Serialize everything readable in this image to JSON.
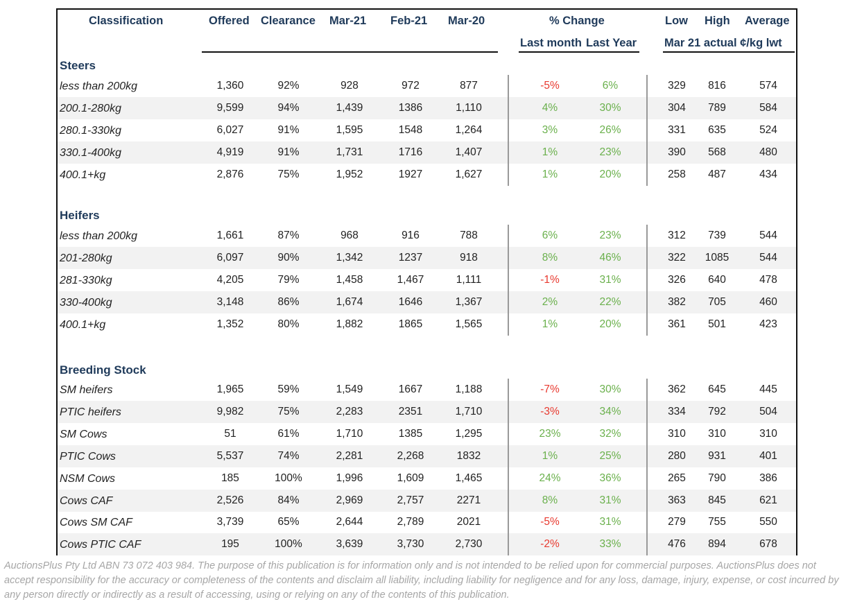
{
  "headers": {
    "classification": "Classification",
    "offered": "Offered",
    "clearance": "Clearance",
    "mar21": "Mar-21",
    "feb21": "Feb-21",
    "mar20": "Mar-20",
    "pct_change": "% Change",
    "last_month": "Last month",
    "last_year": "Last Year",
    "low": "Low",
    "high": "High",
    "average": "Average",
    "price_sub": "Mar 21 actual ¢/kg lwt"
  },
  "sections": [
    {
      "title": "Steers",
      "rows": [
        {
          "label": "less than 200kg",
          "offered": "1,360",
          "clearance": "92%",
          "mar21": "928",
          "feb21": "972",
          "mar20": "877",
          "last_month": "-5%",
          "last_year": "6%",
          "low": "329",
          "high": "816",
          "average": "574"
        },
        {
          "label": "200.1-280kg",
          "offered": "9,599",
          "clearance": "94%",
          "mar21": "1,439",
          "feb21": "1386",
          "mar20": "1,110",
          "last_month": "4%",
          "last_year": "30%",
          "low": "304",
          "high": "789",
          "average": "584"
        },
        {
          "label": "280.1-330kg",
          "offered": "6,027",
          "clearance": "91%",
          "mar21": "1,595",
          "feb21": "1548",
          "mar20": "1,264",
          "last_month": "3%",
          "last_year": "26%",
          "low": "331",
          "high": "635",
          "average": "524"
        },
        {
          "label": "330.1-400kg",
          "offered": "4,919",
          "clearance": "91%",
          "mar21": "1,731",
          "feb21": "1716",
          "mar20": "1,407",
          "last_month": "1%",
          "last_year": "23%",
          "low": "390",
          "high": "568",
          "average": "480"
        },
        {
          "label": "400.1+kg",
          "offered": "2,876",
          "clearance": "75%",
          "mar21": "1,952",
          "feb21": "1927",
          "mar20": "1,627",
          "last_month": "1%",
          "last_year": "20%",
          "low": "258",
          "high": "487",
          "average": "434"
        }
      ]
    },
    {
      "title": "Heifers",
      "rows": [
        {
          "label": "less than 200kg",
          "offered": "1,661",
          "clearance": "87%",
          "mar21": "968",
          "feb21": "916",
          "mar20": "788",
          "last_month": "6%",
          "last_year": "23%",
          "low": "312",
          "high": "739",
          "average": "544"
        },
        {
          "label": "201-280kg",
          "offered": "6,097",
          "clearance": "90%",
          "mar21": "1,342",
          "feb21": "1237",
          "mar20": "918",
          "last_month": "8%",
          "last_year": "46%",
          "low": "322",
          "high": "1085",
          "average": "544"
        },
        {
          "label": "281-330kg",
          "offered": "4,205",
          "clearance": "79%",
          "mar21": "1,458",
          "feb21": "1,467",
          "mar20": "1,111",
          "last_month": "-1%",
          "last_year": "31%",
          "low": "326",
          "high": "640",
          "average": "478"
        },
        {
          "label": "330-400kg",
          "offered": "3,148",
          "clearance": "86%",
          "mar21": "1,674",
          "feb21": "1646",
          "mar20": "1,367",
          "last_month": "2%",
          "last_year": "22%",
          "low": "382",
          "high": "705",
          "average": "460"
        },
        {
          "label": "400.1+kg",
          "offered": "1,352",
          "clearance": "80%",
          "mar21": "1,882",
          "feb21": "1865",
          "mar20": "1,565",
          "last_month": "1%",
          "last_year": "20%",
          "low": "361",
          "high": "501",
          "average": "423"
        }
      ]
    },
    {
      "title": "Breeding Stock",
      "rows": [
        {
          "label": "SM heifers",
          "offered": "1,965",
          "clearance": "59%",
          "mar21": "1,549",
          "feb21": "1667",
          "mar20": "1,188",
          "last_month": "-7%",
          "last_year": "30%",
          "low": "362",
          "high": "645",
          "average": "445"
        },
        {
          "label": "PTIC heifers",
          "offered": "9,982",
          "clearance": "75%",
          "mar21": "2,283",
          "feb21": "2351",
          "mar20": "1,710",
          "last_month": "-3%",
          "last_year": "34%",
          "low": "334",
          "high": "792",
          "average": "504"
        },
        {
          "label": "SM Cows",
          "offered": "51",
          "clearance": "61%",
          "mar21": "1,710",
          "feb21": "1385",
          "mar20": "1,295",
          "last_month": "23%",
          "last_year": "32%",
          "low": "310",
          "high": "310",
          "average": "310"
        },
        {
          "label": "PTIC Cows",
          "offered": "5,537",
          "clearance": "74%",
          "mar21": "2,281",
          "feb21": "2,268",
          "mar20": "1832",
          "last_month": "1%",
          "last_year": "25%",
          "low": "280",
          "high": "931",
          "average": "401"
        },
        {
          "label": "NSM Cows",
          "offered": "185",
          "clearance": "100%",
          "mar21": "1,996",
          "feb21": "1,609",
          "mar20": "1,465",
          "last_month": "24%",
          "last_year": "36%",
          "low": "265",
          "high": "790",
          "average": "386"
        },
        {
          "label": "Cows CAF",
          "offered": "2,526",
          "clearance": "84%",
          "mar21": "2,969",
          "feb21": "2,757",
          "mar20": "2271",
          "last_month": "8%",
          "last_year": "31%",
          "low": "363",
          "high": "845",
          "average": "621"
        },
        {
          "label": "Cows SM CAF",
          "offered": "3,739",
          "clearance": "65%",
          "mar21": "2,644",
          "feb21": "2,789",
          "mar20": "2021",
          "last_month": "-5%",
          "last_year": "31%",
          "low": "279",
          "high": "755",
          "average": "550"
        },
        {
          "label": "Cows PTIC CAF",
          "offered": "195",
          "clearance": "100%",
          "mar21": "3,639",
          "feb21": "3,730",
          "mar20": "2,730",
          "last_month": "-2%",
          "last_year": "33%",
          "low": "476",
          "high": "894",
          "average": "678"
        }
      ]
    }
  ],
  "disclaimer": "AuctionsPlus Pty Ltd ABN 73 072 403 984. The purpose of this publication is for information only and is not intended to be relied upon for commercial purposes. AuctionsPlus does not accept responsibility for the accuracy or completeness of the contents and disclaim all liability, including liability for negligence and for any loss, damage, injury, expense, or cost incurred by any person directly or indirectly as a result of accessing, using or relying on any of the contents of this publication.",
  "colors": {
    "negative": "#e8392f",
    "positive": "#6ab04c",
    "header_text": "#1f3a5a",
    "row_shade": "#f2f2f2"
  }
}
